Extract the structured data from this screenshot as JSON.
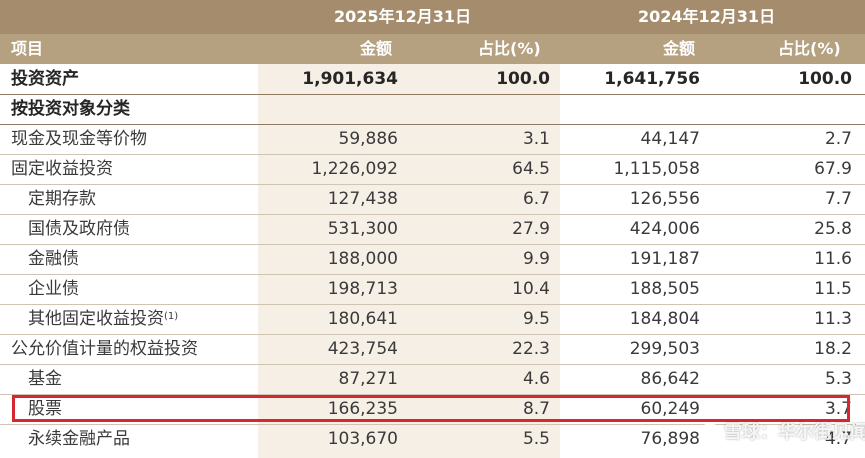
{
  "header": {
    "date_2025": "2025年12月31日",
    "date_2024": "2024年12月31日",
    "item_label": "项目",
    "amount_label": "金额",
    "ratio_label": "占比(%)"
  },
  "rows": [
    {
      "label": "投资资产",
      "a2025": "1,901,634",
      "r2025": "100.0",
      "a2024": "1,641,756",
      "r2024": "100.0"
    },
    {
      "label": "按投资对象分类",
      "a2025": "",
      "r2025": "",
      "a2024": "",
      "r2024": ""
    },
    {
      "label": "现金及现金等价物",
      "a2025": "59,886",
      "r2025": "3.1",
      "a2024": "44,147",
      "r2024": "2.7"
    },
    {
      "label": "固定收益投资",
      "a2025": "1,226,092",
      "r2025": "64.5",
      "a2024": "1,115,058",
      "r2024": "67.9"
    },
    {
      "label": "定期存款",
      "a2025": "127,438",
      "r2025": "6.7",
      "a2024": "126,556",
      "r2024": "7.7"
    },
    {
      "label": "国债及政府债",
      "a2025": "531,300",
      "r2025": "27.9",
      "a2024": "424,006",
      "r2024": "25.8"
    },
    {
      "label": "金融债",
      "a2025": "188,000",
      "r2025": "9.9",
      "a2024": "191,187",
      "r2024": "11.6"
    },
    {
      "label": "企业债",
      "a2025": "198,713",
      "r2025": "10.4",
      "a2024": "188,505",
      "r2024": "11.5"
    },
    {
      "label": "其他固定收益投资",
      "note": "(1)",
      "a2025": "180,641",
      "r2025": "9.5",
      "a2024": "184,804",
      "r2024": "11.3"
    },
    {
      "label": "公允价值计量的权益投资",
      "a2025": "423,754",
      "r2025": "22.3",
      "a2024": "299,503",
      "r2024": "18.2"
    },
    {
      "label": "基金",
      "a2025": "87,271",
      "r2025": "4.6",
      "a2024": "86,642",
      "r2024": "5.3"
    },
    {
      "label": "股票",
      "a2025": "166,235",
      "r2025": "8.7",
      "a2024": "60,249",
      "r2024": "3.7"
    },
    {
      "label": "永续金融产品",
      "a2025": "103,670",
      "r2025": "5.5",
      "a2024": "76,898",
      "r2024": "4.7"
    }
  ],
  "watermark": "雪球：华尔街见闻"
}
